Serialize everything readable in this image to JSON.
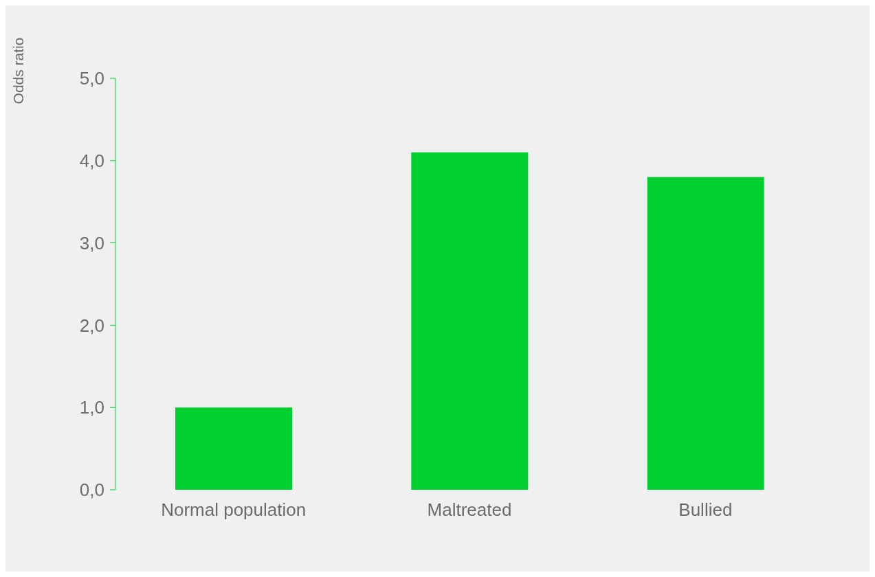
{
  "chart_data": {
    "type": "bar",
    "ylabel": "Odds ratio",
    "categories": [
      "Normal population",
      "Maltreated",
      "Bullied"
    ],
    "values": [
      1.0,
      4.1,
      3.8
    ],
    "color": "#00d130",
    "ylim": [
      0,
      5
    ],
    "yticks": [
      {
        "value": 0,
        "label": "0,0"
      },
      {
        "value": 1,
        "label": "1,0"
      },
      {
        "value": 2,
        "label": "2,0"
      },
      {
        "value": 3,
        "label": "3,0"
      },
      {
        "value": 4,
        "label": "4,0"
      },
      {
        "value": 5,
        "label": "5,0"
      }
    ],
    "grid": false,
    "legend": false
  }
}
